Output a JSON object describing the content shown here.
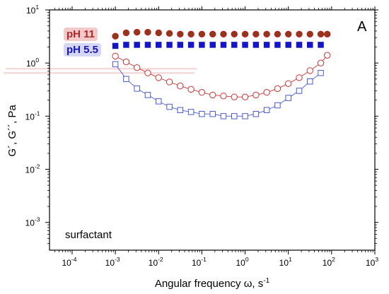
{
  "chart_data": {
    "type": "scatter",
    "panel_label": "A",
    "annotation": "surfactant",
    "xlabel": {
      "main": "Angular frequency ω, s",
      "sup": "-1"
    },
    "ylabel": "G´, G´´, Pa",
    "x_scale": "log",
    "y_scale": "log",
    "xlim": [
      3e-05,
      1000
    ],
    "ylim": [
      0.0003,
      10
    ],
    "x_ticks": [
      {
        "base": "10",
        "exp": "-4",
        "value": 0.0001
      },
      {
        "base": "10",
        "exp": "-3",
        "value": 0.001
      },
      {
        "base": "10",
        "exp": "-2",
        "value": 0.01
      },
      {
        "base": "10",
        "exp": "-1",
        "value": 0.1
      },
      {
        "base": "10",
        "exp": "0",
        "value": 1
      },
      {
        "base": "10",
        "exp": "1",
        "value": 10
      },
      {
        "base": "10",
        "exp": "2",
        "value": 100
      },
      {
        "base": "10",
        "exp": "3",
        "value": 1000
      }
    ],
    "y_ticks": [
      {
        "base": "10",
        "exp": "-3",
        "value": 0.001
      },
      {
        "base": "10",
        "exp": "-2",
        "value": 0.01
      },
      {
        "base": "10",
        "exp": "-1",
        "value": 0.1
      },
      {
        "base": "10",
        "exp": "0",
        "value": 1
      },
      {
        "base": "10",
        "exp": "1",
        "value": 10
      }
    ],
    "legend": [
      {
        "label": "pH 11",
        "color": "#a52a2a",
        "highlight": "#f3c9c9"
      },
      {
        "label": "pH 5.5",
        "color": "#1515b8",
        "highlight": "#d6d6f5"
      }
    ],
    "series": [
      {
        "role": "G' pH 11",
        "marker": "circle",
        "filled": true,
        "fill": "#8b3a1e",
        "stroke": "#cc1111",
        "line": false,
        "x": [
          0.001,
          0.00178,
          0.00316,
          0.00562,
          0.01,
          0.0178,
          0.0316,
          0.0562,
          0.1,
          0.178,
          0.316,
          0.562,
          1,
          1.78,
          3.16,
          5.62,
          10,
          17.8,
          31.6,
          56.2,
          79.4
        ],
        "y": [
          3.2,
          3.7,
          3.8,
          3.8,
          3.7,
          3.6,
          3.5,
          3.5,
          3.5,
          3.5,
          3.5,
          3.5,
          3.5,
          3.5,
          3.5,
          3.5,
          3.5,
          3.5,
          3.5,
          3.5,
          3.5
        ]
      },
      {
        "role": "G' pH 5.5",
        "marker": "square",
        "filled": true,
        "fill": "#1515c8",
        "stroke": "#1515c8",
        "line": false,
        "x": [
          0.001,
          0.00178,
          0.00316,
          0.00562,
          0.01,
          0.0178,
          0.0316,
          0.0562,
          0.1,
          0.178,
          0.316,
          0.562,
          1,
          1.78,
          3.16,
          5.62,
          10,
          17.8,
          31.6,
          56.2
        ],
        "y": [
          2.1,
          2.2,
          2.2,
          2.2,
          2.2,
          2.2,
          2.2,
          2.2,
          2.2,
          2.2,
          2.2,
          2.2,
          2.2,
          2.2,
          2.2,
          2.2,
          2.2,
          2.2,
          2.2,
          2.2
        ]
      },
      {
        "role": "G'' pH 11",
        "marker": "circle",
        "filled": false,
        "fill": "#ffffff",
        "stroke": "#cc3333",
        "line": true,
        "line_color": "#cc3333",
        "x": [
          0.001,
          0.00178,
          0.00316,
          0.00562,
          0.01,
          0.0178,
          0.0316,
          0.0562,
          0.1,
          0.178,
          0.316,
          0.562,
          1,
          1.78,
          3.16,
          5.62,
          10,
          17.8,
          31.6,
          56.2,
          79.4
        ],
        "y": [
          1.35,
          1.05,
          0.82,
          0.65,
          0.53,
          0.44,
          0.37,
          0.32,
          0.28,
          0.25,
          0.24,
          0.23,
          0.23,
          0.25,
          0.28,
          0.33,
          0.41,
          0.53,
          0.72,
          1.0,
          1.4
        ]
      },
      {
        "role": "G'' pH 5.5",
        "marker": "square",
        "filled": false,
        "fill": "#ffffff",
        "stroke": "#4a5ad0",
        "line": true,
        "line_color": "#4a5ad0",
        "x": [
          0.001,
          0.00178,
          0.00316,
          0.00562,
          0.01,
          0.0178,
          0.0316,
          0.0562,
          0.1,
          0.178,
          0.316,
          0.562,
          1,
          1.78,
          3.16,
          5.62,
          10,
          17.8,
          31.6,
          56.2
        ],
        "y": [
          0.95,
          0.5,
          0.33,
          0.25,
          0.19,
          0.15,
          0.13,
          0.12,
          0.11,
          0.11,
          0.1,
          0.1,
          0.1,
          0.11,
          0.13,
          0.16,
          0.22,
          0.3,
          0.45,
          0.65
        ]
      }
    ]
  }
}
